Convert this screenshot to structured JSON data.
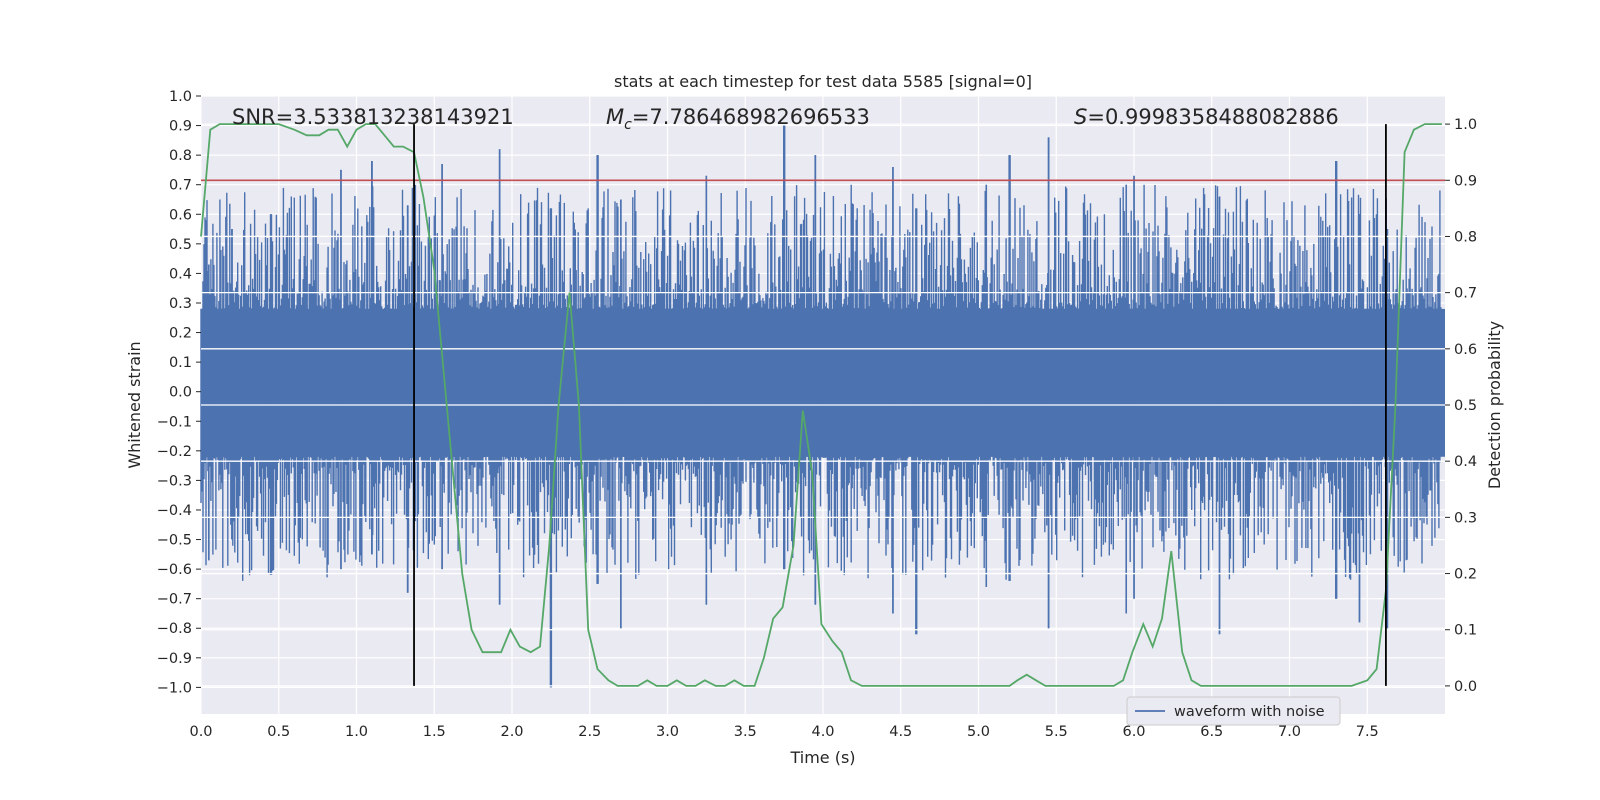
{
  "chart_data": {
    "type": "line",
    "title": "stats at each timestep for test data 5585 [signal=0]",
    "xlabel": "Time (s)",
    "ylabel": "Whitened strain",
    "y2label": "Detection probability",
    "xlim": [
      0,
      8
    ],
    "ylim": [
      -1.09,
      1.0
    ],
    "y2lim": [
      -0.05,
      1.05
    ],
    "xticks": [
      "0.0",
      "0.5",
      "1.0",
      "1.5",
      "2.0",
      "2.5",
      "3.0",
      "3.5",
      "4.0",
      "4.5",
      "5.0",
      "5.5",
      "6.0",
      "6.5",
      "7.0",
      "7.5"
    ],
    "yticks": [
      "1.0",
      "0.9",
      "0.8",
      "0.7",
      "0.6",
      "0.5",
      "0.4",
      "0.3",
      "0.2",
      "0.1",
      "0.0",
      "−0.1",
      "−0.2",
      "−0.3",
      "−0.4",
      "−0.5",
      "−0.6",
      "−0.7",
      "−0.8",
      "−0.9",
      "−1.0"
    ],
    "y2ticks": [
      "1.0",
      "0.9",
      "0.8",
      "0.7",
      "0.6",
      "0.5",
      "0.4",
      "0.3",
      "0.2",
      "0.1",
      "0.0"
    ],
    "annotations": {
      "snr": "SNR=3.533813238143921",
      "mc_symbol": "M",
      "mc_sub": "c",
      "mc_value": "=7.786468982696533",
      "s_symbol": "S",
      "s_value": "=0.9998358488082886"
    },
    "threshold_y2": 0.9,
    "vlines_x": [
      1.37,
      7.62
    ],
    "legend": {
      "label": "waveform with noise",
      "position": "lower-right"
    },
    "colors": {
      "waveform": "#4c72b0",
      "probability": "#55a868",
      "threshold": "#c44e52",
      "vline": "#000000",
      "axes_bg": "#eaeaf2",
      "grid": "#ffffff"
    },
    "series": [
      {
        "name": "waveform with noise",
        "type": "noise-envelope",
        "description_points": [
          [
            0,
            0.42
          ],
          [
            1.37,
            0.62
          ]
        ],
        "peaks": [
          [
            0.05,
            0.43,
            -0.57
          ],
          [
            0.2,
            0.55,
            -0.5
          ],
          [
            0.45,
            0.6,
            -0.62
          ],
          [
            0.9,
            0.75,
            -0.6
          ],
          [
            1.1,
            0.78,
            -0.55
          ],
          [
            1.33,
            0.63,
            -0.68
          ],
          [
            1.55,
            0.77,
            -0.6
          ],
          [
            1.92,
            0.82,
            -0.72
          ],
          [
            2.25,
            0.62,
            -1.0
          ],
          [
            2.55,
            0.8,
            -0.65
          ],
          [
            2.7,
            0.65,
            -0.8
          ],
          [
            3.25,
            0.73,
            -0.72
          ],
          [
            3.75,
            0.9,
            -0.6
          ],
          [
            3.95,
            0.8,
            -0.72
          ],
          [
            4.45,
            0.76,
            -0.75
          ],
          [
            4.6,
            0.62,
            -0.82
          ],
          [
            5.05,
            0.7,
            -0.66
          ],
          [
            5.2,
            0.8,
            -0.64
          ],
          [
            5.45,
            0.86,
            -0.8
          ],
          [
            5.95,
            0.7,
            -0.75
          ],
          [
            6.0,
            0.73,
            -0.7
          ],
          [
            6.55,
            0.66,
            -0.82
          ],
          [
            7.3,
            0.78,
            -0.7
          ],
          [
            7.45,
            0.6,
            -0.78
          ],
          [
            7.63,
            0.55,
            -0.8
          ]
        ]
      },
      {
        "name": "Detection probability",
        "axis": "right",
        "x": [
          0.0,
          0.06,
          0.12,
          0.2,
          0.3,
          0.4,
          0.5,
          0.6,
          0.68,
          0.76,
          0.82,
          0.88,
          0.94,
          1.0,
          1.06,
          1.12,
          1.18,
          1.24,
          1.3,
          1.37,
          1.43,
          1.5,
          1.56,
          1.62,
          1.68,
          1.74,
          1.81,
          1.87,
          1.93,
          1.99,
          2.05,
          2.12,
          2.18,
          2.24,
          2.3,
          2.37,
          2.43,
          2.49,
          2.55,
          2.62,
          2.68,
          2.74,
          2.81,
          2.87,
          2.93,
          3.0,
          3.06,
          3.12,
          3.18,
          3.24,
          3.31,
          3.37,
          3.43,
          3.49,
          3.56,
          3.62,
          3.68,
          3.74,
          3.81,
          3.87,
          3.93,
          3.99,
          4.06,
          4.12,
          4.18,
          4.25,
          4.31,
          4.5,
          4.7,
          4.9,
          5.0,
          5.1,
          5.2,
          5.25,
          5.31,
          5.37,
          5.43,
          5.49,
          5.56,
          5.62,
          5.68,
          5.74,
          5.8,
          5.87,
          5.93,
          5.99,
          6.06,
          6.12,
          6.18,
          6.24,
          6.31,
          6.37,
          6.43,
          6.5,
          6.6,
          6.8,
          7.0,
          7.2,
          7.4,
          7.5,
          7.56,
          7.62,
          7.68,
          7.74,
          7.8,
          7.87,
          7.93,
          7.98
        ],
        "values": [
          0.8,
          0.99,
          1.0,
          1.0,
          1.0,
          1.0,
          1.0,
          0.99,
          0.98,
          0.98,
          0.99,
          0.99,
          0.96,
          0.99,
          1.0,
          1.0,
          0.98,
          0.96,
          0.96,
          0.95,
          0.87,
          0.74,
          0.56,
          0.38,
          0.2,
          0.1,
          0.06,
          0.06,
          0.06,
          0.1,
          0.07,
          0.06,
          0.07,
          0.25,
          0.5,
          0.7,
          0.5,
          0.1,
          0.03,
          0.01,
          0.0,
          0.0,
          0.0,
          0.01,
          0.0,
          0.0,
          0.01,
          0.0,
          0.0,
          0.01,
          0.0,
          0.0,
          0.01,
          0.0,
          0.0,
          0.05,
          0.12,
          0.14,
          0.25,
          0.49,
          0.38,
          0.11,
          0.08,
          0.06,
          0.01,
          0.0,
          0.0,
          0.0,
          0.0,
          0.0,
          0.0,
          0.0,
          0.0,
          0.01,
          0.02,
          0.01,
          0.0,
          0.0,
          0.0,
          0.0,
          0.0,
          0.0,
          0.0,
          0.0,
          0.01,
          0.06,
          0.11,
          0.07,
          0.12,
          0.24,
          0.06,
          0.01,
          0.0,
          0.0,
          0.0,
          0.0,
          0.0,
          0.0,
          0.0,
          0.01,
          0.03,
          0.17,
          0.49,
          0.95,
          0.99,
          1.0,
          1.0,
          1.0
        ]
      }
    ]
  }
}
